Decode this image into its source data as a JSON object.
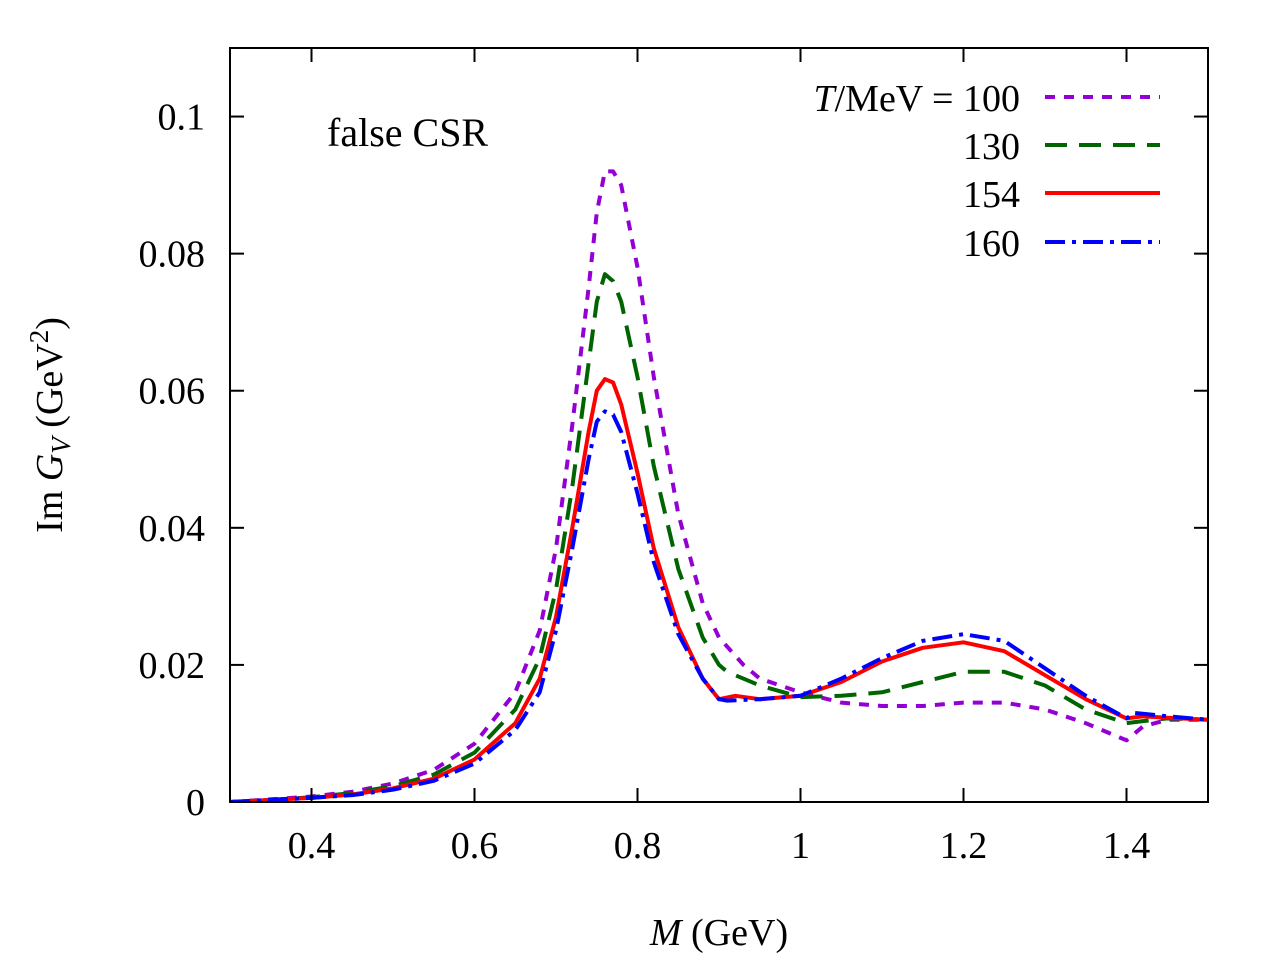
{
  "chart_data": {
    "type": "line",
    "title": "",
    "annotation": "false CSR",
    "xlabel": {
      "var": "M",
      "unit": " (GeV)"
    },
    "ylabel": {
      "prefix": "Im ",
      "var": "G",
      "sub": "V",
      "unit_open": " (GeV",
      "sup": "2",
      "unit_close": ")"
    },
    "xlim": [
      0.3,
      1.5
    ],
    "ylim": [
      0,
      0.11
    ],
    "x_ticks": [
      0.4,
      0.6,
      0.8,
      1.0,
      1.2,
      1.4
    ],
    "x_tick_labels": [
      "0.4",
      "0.6",
      "0.8",
      "1",
      "1.2",
      "1.4"
    ],
    "y_ticks": [
      0,
      0.02,
      0.04,
      0.06,
      0.08,
      0.1
    ],
    "y_tick_labels": [
      "0",
      "0.02",
      "0.04",
      "0.06",
      "0.08",
      "0.1"
    ],
    "grid": false,
    "legend": {
      "placement": "top-right",
      "title_var": "T",
      "title_rest": "/MeV = "
    },
    "series": [
      {
        "name": "100",
        "color": "#9400d3",
        "dash": "10,9",
        "x": [
          0.3,
          0.35,
          0.4,
          0.45,
          0.5,
          0.55,
          0.6,
          0.65,
          0.68,
          0.7,
          0.72,
          0.74,
          0.75,
          0.76,
          0.77,
          0.78,
          0.8,
          0.82,
          0.85,
          0.88,
          0.9,
          0.93,
          0.95,
          1.0,
          1.05,
          1.1,
          1.15,
          1.2,
          1.25,
          1.3,
          1.35,
          1.38,
          1.4,
          1.42,
          1.45,
          1.5
        ],
        "y": [
          0.0,
          0.0004,
          0.0008,
          0.0015,
          0.0027,
          0.0047,
          0.0085,
          0.016,
          0.025,
          0.037,
          0.055,
          0.075,
          0.086,
          0.092,
          0.092,
          0.09,
          0.078,
          0.062,
          0.042,
          0.029,
          0.024,
          0.02,
          0.018,
          0.016,
          0.0145,
          0.014,
          0.014,
          0.0145,
          0.0145,
          0.0135,
          0.0115,
          0.01,
          0.009,
          0.011,
          0.012,
          0.012
        ]
      },
      {
        "name": "130",
        "color": "#006400",
        "dash": "22,12",
        "x": [
          0.3,
          0.35,
          0.4,
          0.45,
          0.5,
          0.55,
          0.6,
          0.65,
          0.68,
          0.7,
          0.72,
          0.74,
          0.75,
          0.76,
          0.77,
          0.78,
          0.8,
          0.82,
          0.85,
          0.88,
          0.9,
          0.91,
          0.95,
          1.0,
          1.05,
          1.1,
          1.15,
          1.2,
          1.25,
          1.3,
          1.35,
          1.4,
          1.42,
          1.45,
          1.5
        ],
        "y": [
          0.0,
          0.0003,
          0.0007,
          0.0013,
          0.0023,
          0.004,
          0.0072,
          0.0135,
          0.021,
          0.031,
          0.046,
          0.064,
          0.073,
          0.077,
          0.076,
          0.073,
          0.062,
          0.049,
          0.034,
          0.024,
          0.02,
          0.019,
          0.017,
          0.0153,
          0.0155,
          0.016,
          0.0175,
          0.019,
          0.019,
          0.017,
          0.0135,
          0.0115,
          0.0118,
          0.0122,
          0.012
        ]
      },
      {
        "name": "154",
        "color": "#ff0000",
        "dash": "",
        "x": [
          0.3,
          0.35,
          0.4,
          0.45,
          0.5,
          0.55,
          0.6,
          0.65,
          0.68,
          0.7,
          0.72,
          0.74,
          0.75,
          0.76,
          0.77,
          0.78,
          0.8,
          0.82,
          0.85,
          0.88,
          0.9,
          0.92,
          0.95,
          1.0,
          1.05,
          1.1,
          1.15,
          1.2,
          1.25,
          1.3,
          1.35,
          1.4,
          1.42,
          1.45,
          1.5
        ],
        "y": [
          0.0,
          0.0003,
          0.0006,
          0.0011,
          0.002,
          0.0034,
          0.0062,
          0.0115,
          0.018,
          0.027,
          0.04,
          0.054,
          0.06,
          0.0617,
          0.0612,
          0.058,
          0.048,
          0.037,
          0.0255,
          0.018,
          0.015,
          0.0155,
          0.015,
          0.0155,
          0.0175,
          0.0205,
          0.0225,
          0.0233,
          0.022,
          0.0185,
          0.015,
          0.0122,
          0.0125,
          0.0123,
          0.012
        ]
      },
      {
        "name": "160",
        "color": "#0000ff",
        "dash": "20,7,4,7",
        "x": [
          0.3,
          0.35,
          0.4,
          0.45,
          0.5,
          0.55,
          0.6,
          0.65,
          0.68,
          0.7,
          0.72,
          0.74,
          0.75,
          0.76,
          0.77,
          0.78,
          0.8,
          0.82,
          0.85,
          0.88,
          0.9,
          0.91,
          0.95,
          1.0,
          1.05,
          1.1,
          1.15,
          1.2,
          1.25,
          1.3,
          1.35,
          1.4,
          1.41,
          1.45,
          1.5
        ],
        "y": [
          0.0,
          0.0003,
          0.0006,
          0.001,
          0.0018,
          0.0031,
          0.0056,
          0.0105,
          0.016,
          0.025,
          0.037,
          0.05,
          0.0555,
          0.057,
          0.0565,
          0.054,
          0.045,
          0.035,
          0.0245,
          0.018,
          0.015,
          0.0148,
          0.015,
          0.0155,
          0.018,
          0.021,
          0.0235,
          0.0245,
          0.0235,
          0.0195,
          0.0155,
          0.0122,
          0.013,
          0.0125,
          0.012
        ]
      }
    ]
  }
}
